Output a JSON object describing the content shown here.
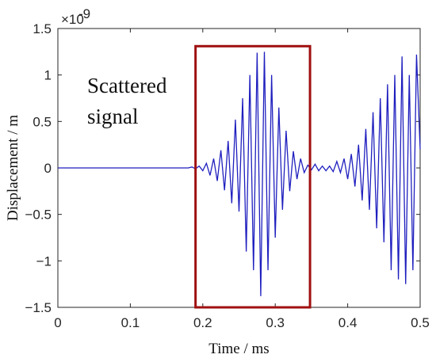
{
  "chart_data": {
    "type": "line",
    "xlabel": "Time / ms",
    "ylabel": "Displacement / m",
    "xlim": [
      0,
      0.5
    ],
    "ylim": [
      -1.5,
      1.5
    ],
    "y_scale_label": "×10",
    "y_scale_exponent": "-9",
    "x_ticks": [
      "0",
      "0.1",
      "0.2",
      "0.3",
      "0.4",
      "0.5"
    ],
    "y_ticks": [
      "-1.5",
      "-1",
      "-0.5",
      "0",
      "0.5",
      "1",
      "1.5"
    ],
    "grid": false,
    "series": [
      {
        "color": "#1f1fbf",
        "x": [
          0,
          0.1,
          0.18,
          0.185,
          0.19,
          0.195,
          0.2,
          0.205,
          0.21,
          0.215,
          0.22,
          0.225,
          0.23,
          0.235,
          0.24,
          0.245,
          0.25,
          0.255,
          0.26,
          0.265,
          0.27,
          0.275,
          0.28,
          0.285,
          0.29,
          0.295,
          0.3,
          0.305,
          0.31,
          0.315,
          0.32,
          0.325,
          0.33,
          0.335,
          0.34,
          0.345,
          0.35,
          0.355,
          0.36,
          0.365,
          0.37,
          0.375,
          0.38,
          0.385,
          0.39,
          0.395,
          0.4,
          0.405,
          0.41,
          0.415,
          0.42,
          0.425,
          0.43,
          0.435,
          0.44,
          0.445,
          0.45,
          0.455,
          0.46,
          0.465,
          0.47,
          0.475,
          0.48,
          0.485,
          0.49,
          0.495,
          0.5
        ],
        "y": [
          0,
          0,
          0,
          0.01,
          -0.01,
          0.02,
          -0.03,
          0.05,
          -0.08,
          0.1,
          -0.14,
          0.19,
          -0.24,
          0.29,
          -0.38,
          0.52,
          -0.47,
          0.75,
          -0.9,
          1.0,
          -1.1,
          1.24,
          -1.38,
          1.25,
          -1.1,
          1.0,
          -0.75,
          0.65,
          -0.45,
          0.4,
          -0.25,
          0.18,
          -0.12,
          0.1,
          -0.05,
          0.03,
          -0.02,
          0.04,
          -0.03,
          0.02,
          -0.03,
          0.02,
          -0.04,
          0.07,
          -0.05,
          0.1,
          -0.12,
          0.15,
          -0.2,
          0.25,
          -0.35,
          0.42,
          -0.45,
          0.6,
          -0.65,
          0.75,
          -0.8,
          0.9,
          -1.1,
          1.0,
          -1.2,
          1.2,
          -1.25,
          1.0,
          -1.1,
          1.22,
          0.2
        ]
      }
    ],
    "annotation": {
      "lines": [
        "Scattered",
        "signal"
      ],
      "box_x": [
        0.19,
        0.348
      ],
      "box_y": [
        -1.5,
        1.31
      ],
      "box_color": "#a01010"
    }
  }
}
